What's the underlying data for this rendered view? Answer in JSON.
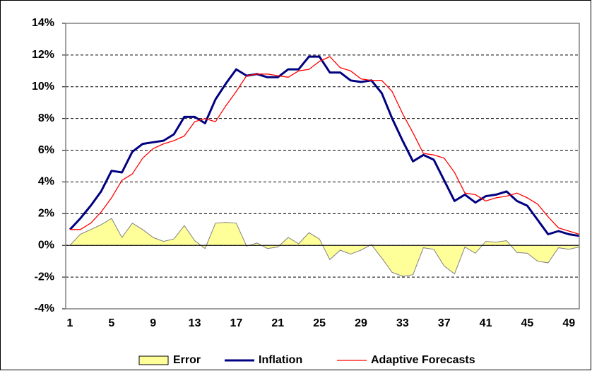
{
  "chart_data": {
    "type": "line",
    "x": [
      1,
      2,
      3,
      4,
      5,
      6,
      7,
      8,
      9,
      10,
      11,
      12,
      13,
      14,
      15,
      16,
      17,
      18,
      19,
      20,
      21,
      22,
      23,
      24,
      25,
      26,
      27,
      28,
      29,
      30,
      31,
      32,
      33,
      34,
      35,
      36,
      37,
      38,
      39,
      40,
      41,
      42,
      43,
      44,
      45,
      46,
      47,
      48,
      49,
      50
    ],
    "xlim": [
      1,
      50
    ],
    "xticks": [
      1,
      5,
      9,
      13,
      17,
      21,
      25,
      29,
      33,
      37,
      41,
      45,
      49
    ],
    "ylim": [
      -4,
      14
    ],
    "yticks": [
      {
        "value": -4,
        "label": "-4%"
      },
      {
        "value": -2,
        "label": "-2%"
      },
      {
        "value": 0,
        "label": "0%"
      },
      {
        "value": 2,
        "label": "2%"
      },
      {
        "value": 4,
        "label": "4%"
      },
      {
        "value": 6,
        "label": "6%"
      },
      {
        "value": 8,
        "label": "8%"
      },
      {
        "value": 10,
        "label": "10%"
      },
      {
        "value": 12,
        "label": "12%"
      },
      {
        "value": 14,
        "label": "14%"
      }
    ],
    "grid": true,
    "legend": "bottom",
    "series": [
      {
        "name": "Error",
        "type": "area",
        "color": "#ffff99",
        "values": [
          0,
          0.7,
          1.0,
          1.3,
          1.7,
          0.5,
          1.4,
          1.0,
          0.5,
          0.25,
          0.4,
          1.25,
          0.3,
          -0.2,
          1.4,
          1.45,
          1.4,
          -0.05,
          0.15,
          -0.2,
          -0.1,
          0.5,
          0.1,
          0.8,
          0.4,
          -0.9,
          -0.3,
          -0.55,
          -0.3,
          0.05,
          -0.8,
          -1.7,
          -1.95,
          -1.85,
          -0.15,
          -0.25,
          -1.3,
          -1.8,
          -0.1,
          -0.5,
          0.25,
          0.2,
          0.3,
          -0.45,
          -0.5,
          -1.0,
          -1.1,
          -0.15,
          -0.25,
          -0.1
        ]
      },
      {
        "name": "Inflation",
        "type": "line",
        "color": "#000080",
        "values": [
          1.0,
          1.7,
          2.5,
          3.4,
          4.7,
          4.6,
          5.9,
          6.4,
          6.5,
          6.6,
          7.0,
          8.1,
          8.1,
          7.7,
          9.2,
          10.2,
          11.1,
          10.7,
          10.8,
          10.6,
          10.6,
          11.1,
          11.1,
          11.9,
          11.9,
          10.9,
          10.9,
          10.4,
          10.3,
          10.4,
          9.6,
          8.0,
          6.6,
          5.3,
          5.7,
          5.4,
          4.1,
          2.8,
          3.2,
          2.7,
          3.1,
          3.2,
          3.4,
          2.8,
          2.5,
          1.6,
          0.7,
          0.9,
          0.7,
          0.6
        ]
      },
      {
        "name": "Adaptive Forecasts",
        "type": "line",
        "color": "#ff0000",
        "values": [
          1.0,
          1.0,
          1.4,
          2.1,
          3.0,
          4.1,
          4.5,
          5.5,
          6.1,
          6.4,
          6.6,
          6.9,
          7.8,
          8.0,
          7.8,
          8.8,
          9.7,
          10.7,
          10.8,
          10.8,
          10.7,
          10.6,
          11.0,
          11.1,
          11.6,
          11.9,
          11.2,
          11.0,
          10.5,
          10.4,
          10.4,
          9.7,
          8.3,
          7.1,
          5.8,
          5.7,
          5.5,
          4.6,
          3.3,
          3.2,
          2.8,
          3.0,
          3.1,
          3.3,
          3.0,
          2.6,
          1.8,
          1.1,
          0.9,
          0.7
        ]
      }
    ]
  }
}
